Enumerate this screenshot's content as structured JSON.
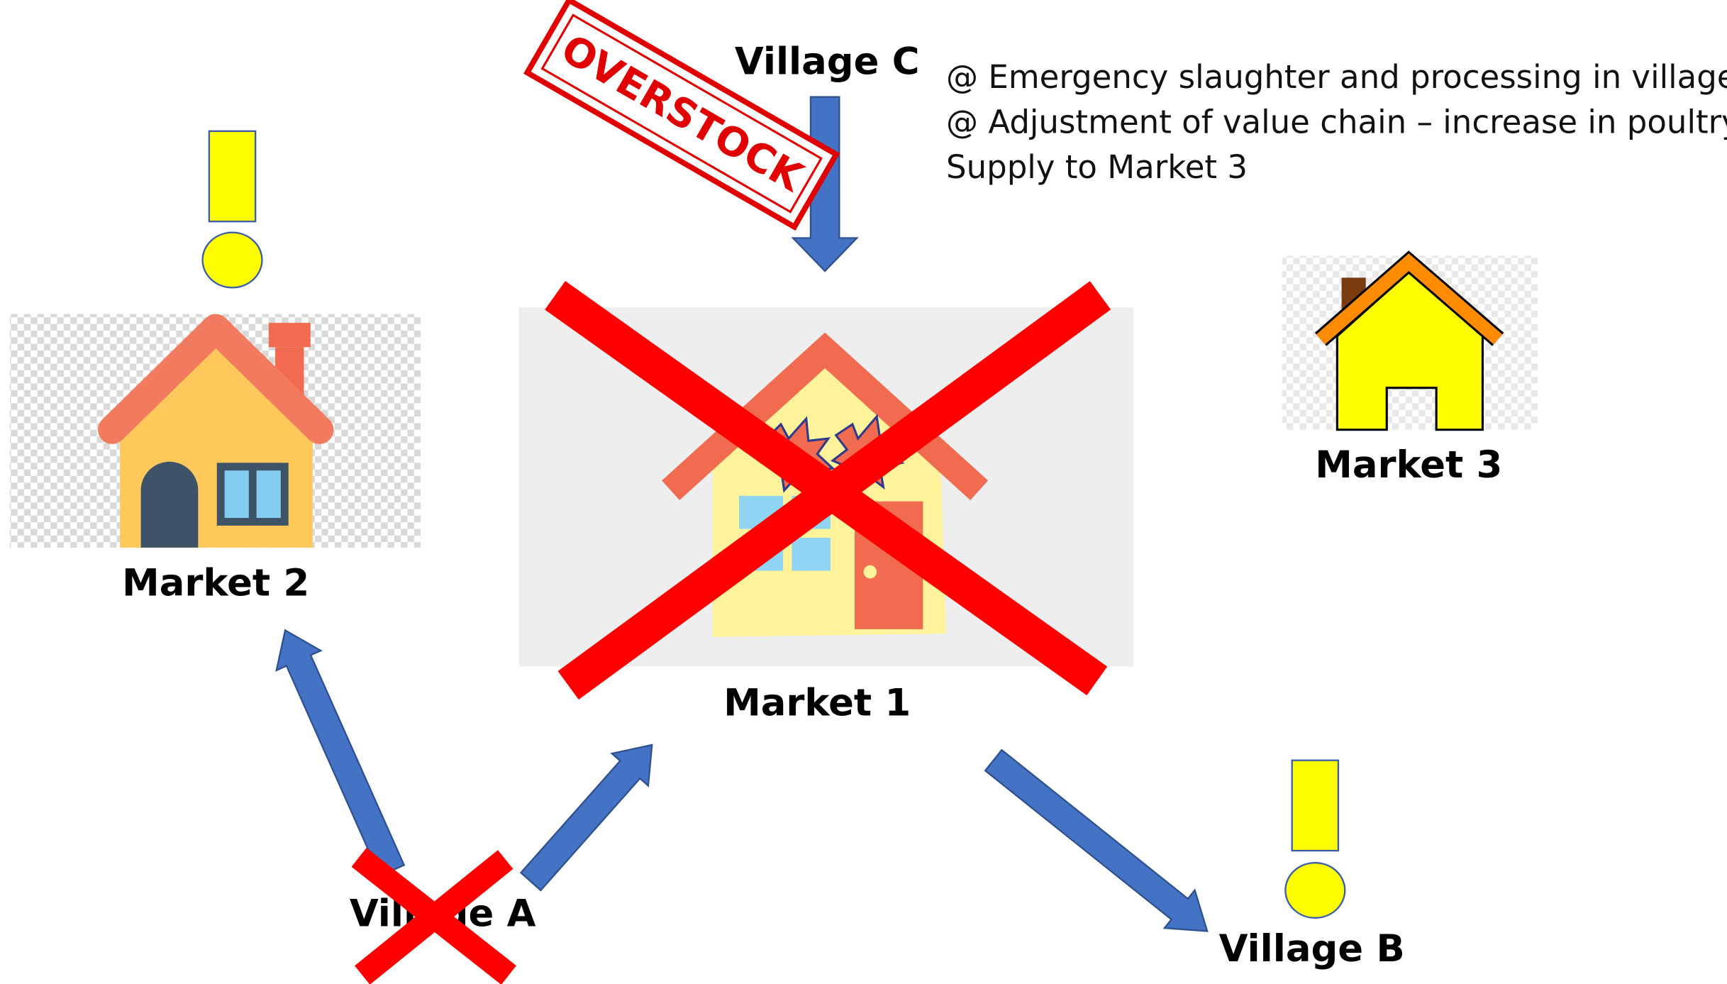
{
  "nodes": {
    "village_c": {
      "label": "Village C"
    },
    "market_1": {
      "label": "Market 1"
    },
    "market_2": {
      "label": "Market 2"
    },
    "market_3": {
      "label": "Market 3"
    },
    "village_a": {
      "label": "Village A"
    },
    "village_b": {
      "label": "Village B"
    }
  },
  "stamp": "OVERSTOCK",
  "notes": [
    "@ Emergency slaughter and processing in village C",
    "@ Adjustment of value chain – increase in poultry",
    "Supply to Market 3"
  ]
}
